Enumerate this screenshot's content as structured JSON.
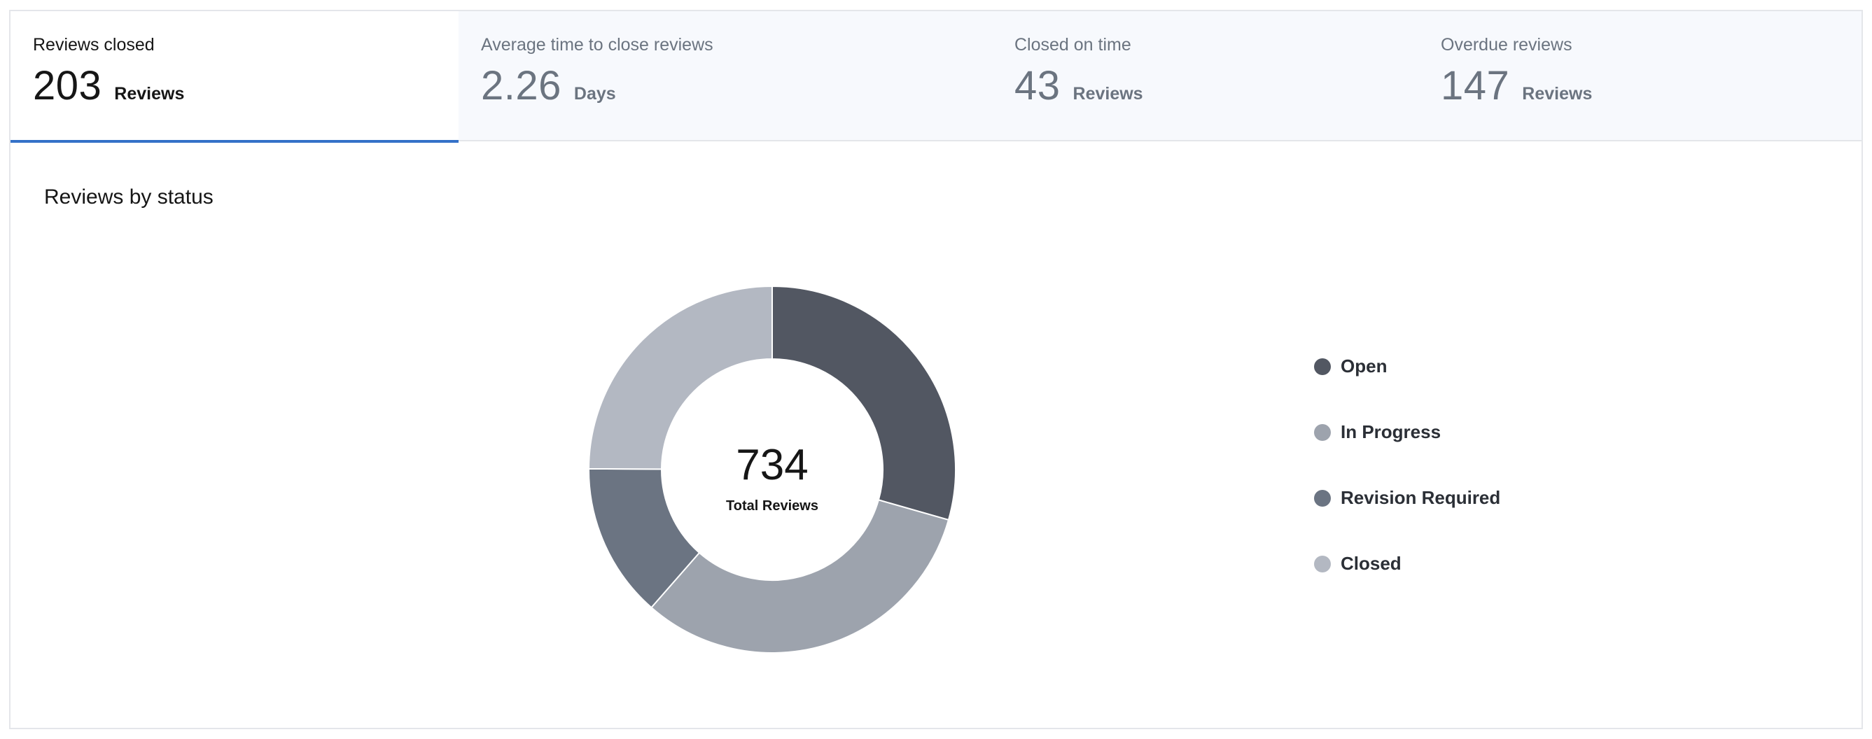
{
  "tabs": [
    {
      "label": "Reviews closed",
      "value": "203",
      "unit": "Reviews",
      "active": true
    },
    {
      "label": "Average time to close reviews",
      "value": "2.26",
      "unit": "Days",
      "active": false
    },
    {
      "label": "Closed on time",
      "value": "43",
      "unit": "Reviews",
      "active": false
    },
    {
      "label": "Overdue reviews",
      "value": "147",
      "unit": "Reviews",
      "active": false
    }
  ],
  "section": {
    "title": "Reviews by status"
  },
  "chart_data": {
    "type": "pie",
    "title": "Reviews by status",
    "center_value": "734",
    "center_label": "Total Reviews",
    "total": 734,
    "slices": [
      {
        "name": "Open",
        "value": 216,
        "color": "#525762"
      },
      {
        "name": "In Progress",
        "value": 235,
        "color": "#9da3ad"
      },
      {
        "name": "Revision Required",
        "value": 100,
        "color": "#6b7482"
      },
      {
        "name": "Closed",
        "value": 183,
        "color": "#b3b8c2"
      }
    ],
    "legend_position": "right"
  }
}
